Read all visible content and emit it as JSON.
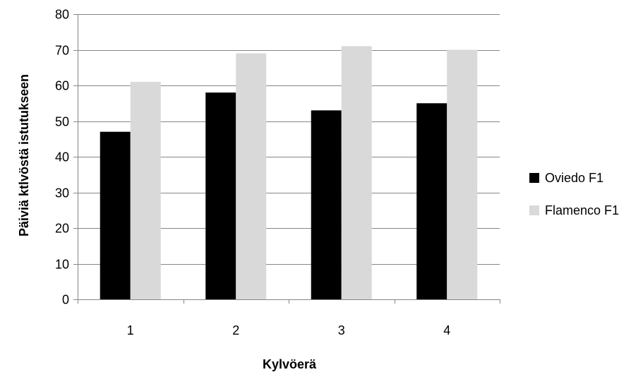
{
  "chart_data": {
    "type": "bar",
    "title": "",
    "xlabel": "Kylvöerä",
    "ylabel": "Päiviä ktlvöstä istutukseen",
    "categories": [
      "1",
      "2",
      "3",
      "4"
    ],
    "series": [
      {
        "name": "Oviedo F1",
        "values": [
          47,
          58,
          53,
          55
        ],
        "color": "#000000"
      },
      {
        "name": "Flamenco F1",
        "values": [
          61,
          69,
          71,
          70
        ],
        "color": "#d9d9d9"
      }
    ],
    "ylim": [
      0,
      80
    ],
    "yticks": [
      0,
      10,
      20,
      30,
      40,
      50,
      60,
      70,
      80
    ],
    "grid": true,
    "legend_position": "right",
    "gridline_color": "#868686"
  }
}
